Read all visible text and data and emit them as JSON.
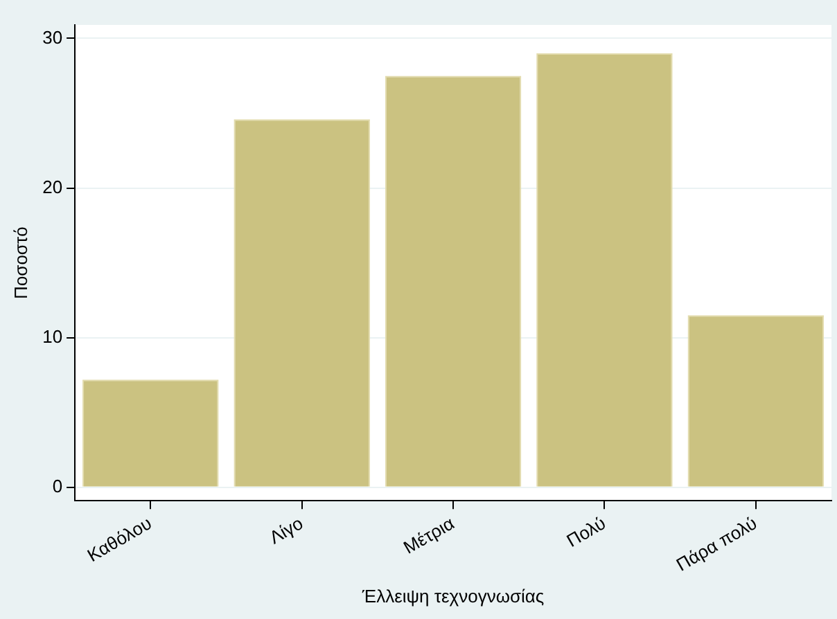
{
  "chart_data": {
    "type": "bar",
    "xlabel": "Έλλειψη τεχνογνωσίας",
    "ylabel": "Ποσοστό",
    "categories": [
      "Καθόλου",
      "Λίγο",
      "Μέτρια",
      "Πολύ",
      "Πάρα πολύ"
    ],
    "values": [
      7.2,
      24.6,
      27.5,
      29.0,
      11.5
    ],
    "color": "#cbc281",
    "ylim": [
      -0.9,
      30.9
    ],
    "yticks": [
      0,
      10,
      20,
      30
    ],
    "grid": "y",
    "legend": false
  }
}
